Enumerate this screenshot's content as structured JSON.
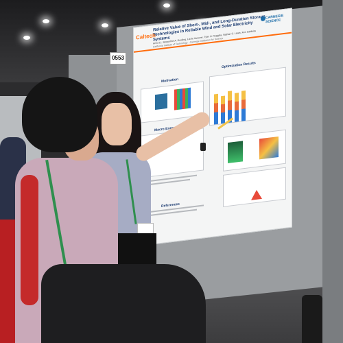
{
  "booth": {
    "number": "0553"
  },
  "poster": {
    "logo_left": "Caltech",
    "logo_right": "CARNEGIE SCIENCE",
    "title": "Relative Value of Short-, Mid-, and Long-Duration Storage Technologies in Reliable Wind and Solar Electricity Systems",
    "authors": "Anna Li, Jacqueline A. Dowling, Lizzie Vanover, Tyler H. Ruggles, Nathan S. Lewis, Ken Caldeira",
    "affiliation": "California Institute of Technology · Carnegie Institution for Science",
    "sections": {
      "motivation": "Motivation",
      "macro_energy_model": "Macro Energy Model",
      "optimization_results": "Optimization Results",
      "references": "References"
    }
  },
  "colors": {
    "accent": "#ff6c0c",
    "poster_title": "#1a3a70",
    "panel": "#9a9da0"
  }
}
